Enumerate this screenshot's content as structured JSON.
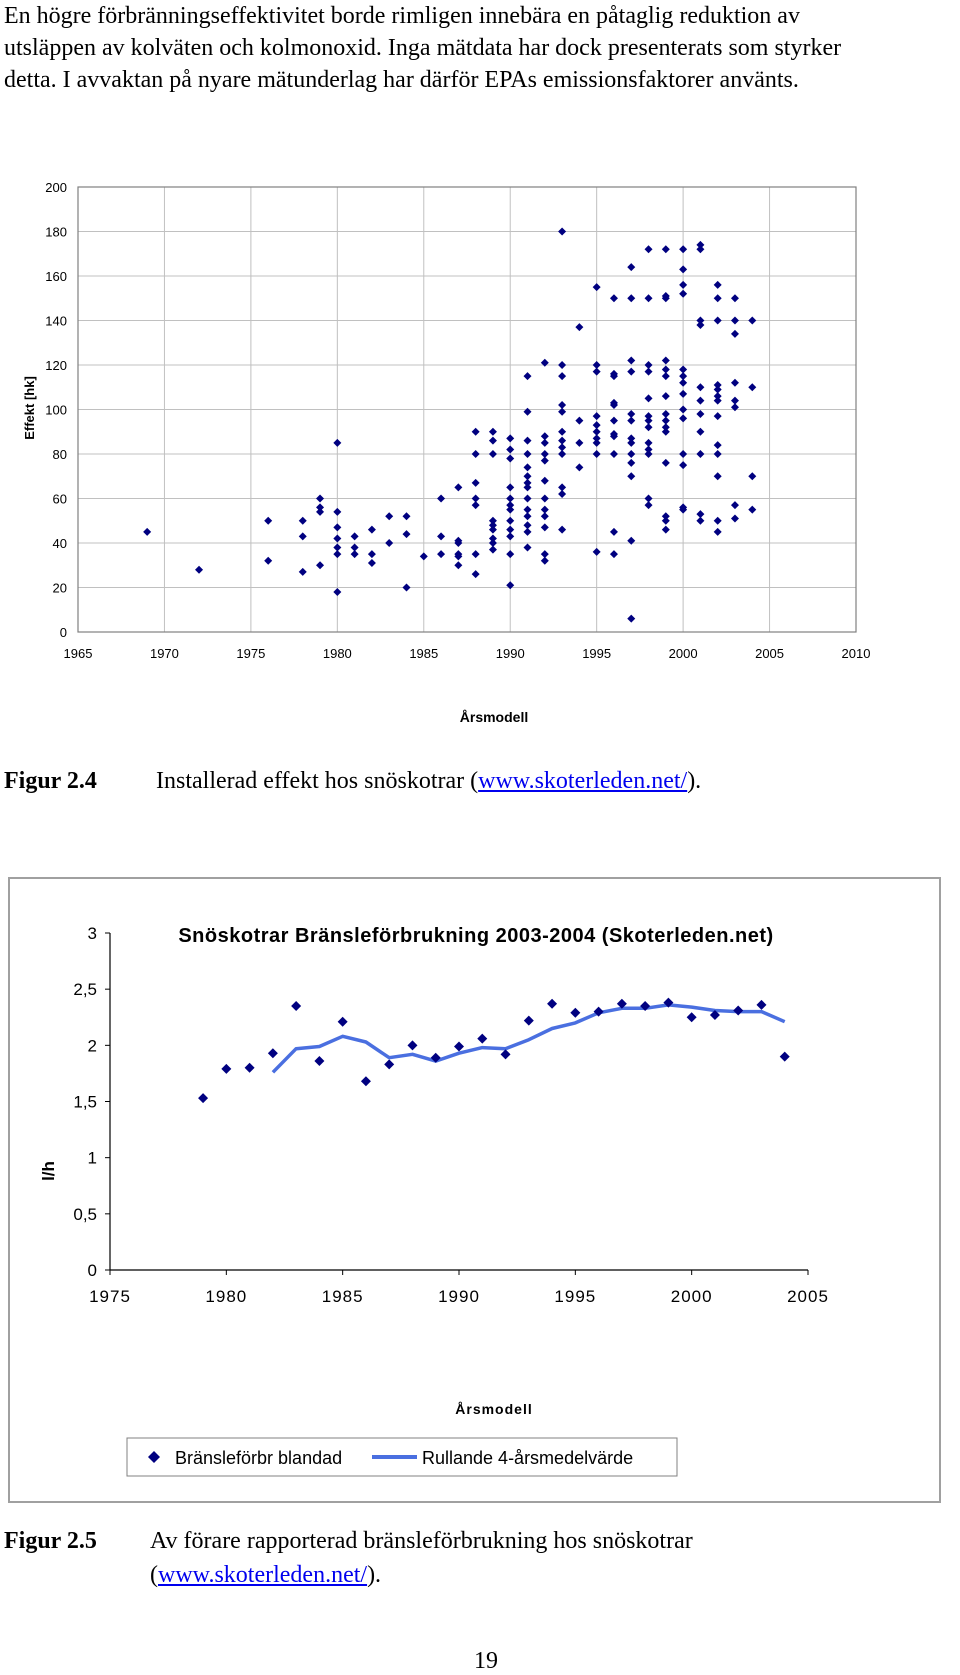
{
  "intro": {
    "line1": "En högre förbränningseffektivitet borde rimligen innebära en påtaglig reduktion av",
    "line2": "utsläppen av kolväten och kolmonoxid. Inga mätdata har dock presenterats som styrker",
    "line3": "detta. I avvaktan på nyare mätunderlag har därför EPAs emissionsfaktorer använts."
  },
  "figure1": {
    "label": "Figur 2.4",
    "caption_text": "Installerad effekt hos snöskotrar (",
    "caption_link": "www.skoterleden.net/",
    "caption_end": ")."
  },
  "figure2": {
    "label": "Figur 2.5",
    "caption_line1": "Av förare rapporterad bränsleförbrukning hos snöskotrar",
    "caption_open": "(",
    "caption_link": "www.skoterleden.net/",
    "caption_end": ")."
  },
  "page_number": "19",
  "colors": {
    "marker": "#000080",
    "line": "#4a6fe0",
    "grid": "#c0c0c0",
    "axis": "#808080"
  },
  "chart_data": [
    {
      "type": "scatter",
      "title": "",
      "xlabel": "Årsmodell",
      "ylabel": "Effekt [hk]",
      "xlim": [
        1965,
        2010
      ],
      "ylim": [
        0,
        200
      ],
      "xticks": [
        "1965",
        "1970",
        "1975",
        "1980",
        "1985",
        "1990",
        "1995",
        "2000",
        "2005",
        "2010"
      ],
      "yticks": [
        "0",
        "20",
        "40",
        "60",
        "80",
        "100",
        "120",
        "140",
        "160",
        "180",
        "200"
      ],
      "grid": true,
      "points": [
        [
          1969,
          45
        ],
        [
          1972,
          28
        ],
        [
          1976,
          50
        ],
        [
          1976,
          32
        ],
        [
          1978,
          50
        ],
        [
          1978,
          43
        ],
        [
          1978,
          27
        ],
        [
          1979,
          60
        ],
        [
          1979,
          56
        ],
        [
          1979,
          54
        ],
        [
          1979,
          30
        ],
        [
          1980,
          85
        ],
        [
          1980,
          54
        ],
        [
          1980,
          47
        ],
        [
          1980,
          42
        ],
        [
          1980,
          38
        ],
        [
          1980,
          35
        ],
        [
          1980,
          18
        ],
        [
          1981,
          43
        ],
        [
          1981,
          38
        ],
        [
          1981,
          35
        ],
        [
          1982,
          46
        ],
        [
          1982,
          35
        ],
        [
          1982,
          31
        ],
        [
          1983,
          52
        ],
        [
          1983,
          40
        ],
        [
          1984,
          52
        ],
        [
          1984,
          44
        ],
        [
          1984,
          20
        ],
        [
          1985,
          34
        ],
        [
          1986,
          60
        ],
        [
          1986,
          43
        ],
        [
          1986,
          35
        ],
        [
          1987,
          65
        ],
        [
          1987,
          41
        ],
        [
          1987,
          40
        ],
        [
          1987,
          35
        ],
        [
          1987,
          34
        ],
        [
          1987,
          30
        ],
        [
          1988,
          90
        ],
        [
          1988,
          80
        ],
        [
          1988,
          67
        ],
        [
          1988,
          60
        ],
        [
          1988,
          57
        ],
        [
          1988,
          35
        ],
        [
          1988,
          26
        ],
        [
          1989,
          90
        ],
        [
          1989,
          86
        ],
        [
          1989,
          80
        ],
        [
          1989,
          50
        ],
        [
          1989,
          48
        ],
        [
          1989,
          46
        ],
        [
          1989,
          42
        ],
        [
          1989,
          40
        ],
        [
          1989,
          37
        ],
        [
          1990,
          87
        ],
        [
          1990,
          82
        ],
        [
          1990,
          78
        ],
        [
          1990,
          65
        ],
        [
          1990,
          60
        ],
        [
          1990,
          57
        ],
        [
          1990,
          55
        ],
        [
          1990,
          50
        ],
        [
          1990,
          46
        ],
        [
          1990,
          43
        ],
        [
          1990,
          35
        ],
        [
          1990,
          21
        ],
        [
          1991,
          115
        ],
        [
          1991,
          99
        ],
        [
          1991,
          86
        ],
        [
          1991,
          80
        ],
        [
          1991,
          74
        ],
        [
          1991,
          70
        ],
        [
          1991,
          67
        ],
        [
          1991,
          65
        ],
        [
          1991,
          60
        ],
        [
          1991,
          55
        ],
        [
          1991,
          52
        ],
        [
          1991,
          48
        ],
        [
          1991,
          45
        ],
        [
          1991,
          38
        ],
        [
          1992,
          121
        ],
        [
          1992,
          88
        ],
        [
          1992,
          85
        ],
        [
          1992,
          80
        ],
        [
          1992,
          77
        ],
        [
          1992,
          68
        ],
        [
          1992,
          60
        ],
        [
          1992,
          55
        ],
        [
          1992,
          52
        ],
        [
          1992,
          47
        ],
        [
          1992,
          35
        ],
        [
          1992,
          32
        ],
        [
          1993,
          180
        ],
        [
          1993,
          120
        ],
        [
          1993,
          115
        ],
        [
          1993,
          102
        ],
        [
          1993,
          99
        ],
        [
          1993,
          90
        ],
        [
          1993,
          86
        ],
        [
          1993,
          83
        ],
        [
          1993,
          80
        ],
        [
          1993,
          65
        ],
        [
          1993,
          62
        ],
        [
          1993,
          46
        ],
        [
          1994,
          137
        ],
        [
          1994,
          95
        ],
        [
          1994,
          85
        ],
        [
          1994,
          74
        ],
        [
          1995,
          155
        ],
        [
          1995,
          120
        ],
        [
          1995,
          117
        ],
        [
          1995,
          97
        ],
        [
          1995,
          93
        ],
        [
          1995,
          90
        ],
        [
          1995,
          87
        ],
        [
          1995,
          85
        ],
        [
          1995,
          80
        ],
        [
          1995,
          36
        ],
        [
          1996,
          150
        ],
        [
          1996,
          116
        ],
        [
          1996,
          115
        ],
        [
          1996,
          103
        ],
        [
          1996,
          102
        ],
        [
          1996,
          95
        ],
        [
          1996,
          89
        ],
        [
          1996,
          88
        ],
        [
          1996,
          80
        ],
        [
          1996,
          45
        ],
        [
          1996,
          35
        ],
        [
          1997,
          164
        ],
        [
          1997,
          150
        ],
        [
          1997,
          122
        ],
        [
          1997,
          117
        ],
        [
          1997,
          98
        ],
        [
          1997,
          95
        ],
        [
          1997,
          87
        ],
        [
          1997,
          85
        ],
        [
          1997,
          80
        ],
        [
          1997,
          76
        ],
        [
          1997,
          70
        ],
        [
          1997,
          41
        ],
        [
          1997,
          6
        ],
        [
          1998,
          172
        ],
        [
          1998,
          150
        ],
        [
          1998,
          120
        ],
        [
          1998,
          117
        ],
        [
          1998,
          105
        ],
        [
          1998,
          97
        ],
        [
          1998,
          95
        ],
        [
          1998,
          92
        ],
        [
          1998,
          85
        ],
        [
          1998,
          82
        ],
        [
          1998,
          80
        ],
        [
          1998,
          60
        ],
        [
          1998,
          57
        ],
        [
          1999,
          172
        ],
        [
          1999,
          151
        ],
        [
          1999,
          150
        ],
        [
          1999,
          122
        ],
        [
          1999,
          118
        ],
        [
          1999,
          115
        ],
        [
          1999,
          106
        ],
        [
          1999,
          98
        ],
        [
          1999,
          95
        ],
        [
          1999,
          92
        ],
        [
          1999,
          90
        ],
        [
          1999,
          76
        ],
        [
          1999,
          52
        ],
        [
          1999,
          50
        ],
        [
          1999,
          46
        ],
        [
          2000,
          172
        ],
        [
          2000,
          163
        ],
        [
          2000,
          156
        ],
        [
          2000,
          152
        ],
        [
          2000,
          118
        ],
        [
          2000,
          115
        ],
        [
          2000,
          112
        ],
        [
          2000,
          107
        ],
        [
          2000,
          100
        ],
        [
          2000,
          96
        ],
        [
          2000,
          80
        ],
        [
          2000,
          75
        ],
        [
          2000,
          56
        ],
        [
          2000,
          55
        ],
        [
          2001,
          174
        ],
        [
          2001,
          172
        ],
        [
          2001,
          140
        ],
        [
          2001,
          138
        ],
        [
          2001,
          110
        ],
        [
          2001,
          104
        ],
        [
          2001,
          98
        ],
        [
          2001,
          90
        ],
        [
          2001,
          80
        ],
        [
          2001,
          53
        ],
        [
          2001,
          50
        ],
        [
          2002,
          156
        ],
        [
          2002,
          150
        ],
        [
          2002,
          140
        ],
        [
          2002,
          111
        ],
        [
          2002,
          109
        ],
        [
          2002,
          106
        ],
        [
          2002,
          104
        ],
        [
          2002,
          97
        ],
        [
          2002,
          84
        ],
        [
          2002,
          80
        ],
        [
          2002,
          70
        ],
        [
          2002,
          50
        ],
        [
          2002,
          45
        ],
        [
          2003,
          150
        ],
        [
          2003,
          140
        ],
        [
          2003,
          134
        ],
        [
          2003,
          112
        ],
        [
          2003,
          104
        ],
        [
          2003,
          101
        ],
        [
          2003,
          57
        ],
        [
          2003,
          51
        ],
        [
          2004,
          140
        ],
        [
          2004,
          110
        ],
        [
          2004,
          70
        ],
        [
          2004,
          55
        ]
      ]
    },
    {
      "type": "line",
      "title": "Snöskotrar Bränsleförbrukning 2003-2004 (Skoterleden.net)",
      "xlabel": "Årsmodell",
      "ylabel": "l/h",
      "xlim": [
        1975,
        2005
      ],
      "ylim": [
        0,
        3
      ],
      "xticks": [
        "1975",
        "1980",
        "1985",
        "1990",
        "1995",
        "2000",
        "2005"
      ],
      "yticks": [
        "0",
        "0,5",
        "1",
        "1,5",
        "2",
        "2,5",
        "3"
      ],
      "grid": false,
      "legend_position": "bottom",
      "series": [
        {
          "name": "Bränsleförbr blandad",
          "style": "markers",
          "x": [
            1979,
            1980,
            1981,
            1982,
            1983,
            1984,
            1985,
            1986,
            1987,
            1988,
            1989,
            1990,
            1991,
            1992,
            1993,
            1994,
            1995,
            1996,
            1997,
            1998,
            1999,
            2000,
            2001,
            2002,
            2003,
            2004
          ],
          "values": [
            1.53,
            1.79,
            1.8,
            1.93,
            2.35,
            1.86,
            2.21,
            1.68,
            1.83,
            2.0,
            1.89,
            1.99,
            2.06,
            1.92,
            2.22,
            2.37,
            2.29,
            2.3,
            2.37,
            2.35,
            2.38,
            2.25,
            2.27,
            2.31,
            2.36,
            1.9
          ]
        },
        {
          "name": "Rullande 4-årsmedelvärde",
          "style": "line",
          "x": [
            1982,
            1983,
            1984,
            1985,
            1986,
            1987,
            1988,
            1989,
            1990,
            1991,
            1992,
            1993,
            1994,
            1995,
            1996,
            1997,
            1998,
            1999,
            2000,
            2001,
            2002,
            2003,
            2004
          ],
          "values": [
            1.76,
            1.97,
            1.99,
            2.08,
            2.03,
            1.89,
            1.92,
            1.86,
            1.93,
            1.98,
            1.97,
            2.05,
            2.15,
            2.2,
            2.29,
            2.33,
            2.33,
            2.36,
            2.34,
            2.31,
            2.3,
            2.3,
            2.21
          ]
        }
      ]
    }
  ]
}
